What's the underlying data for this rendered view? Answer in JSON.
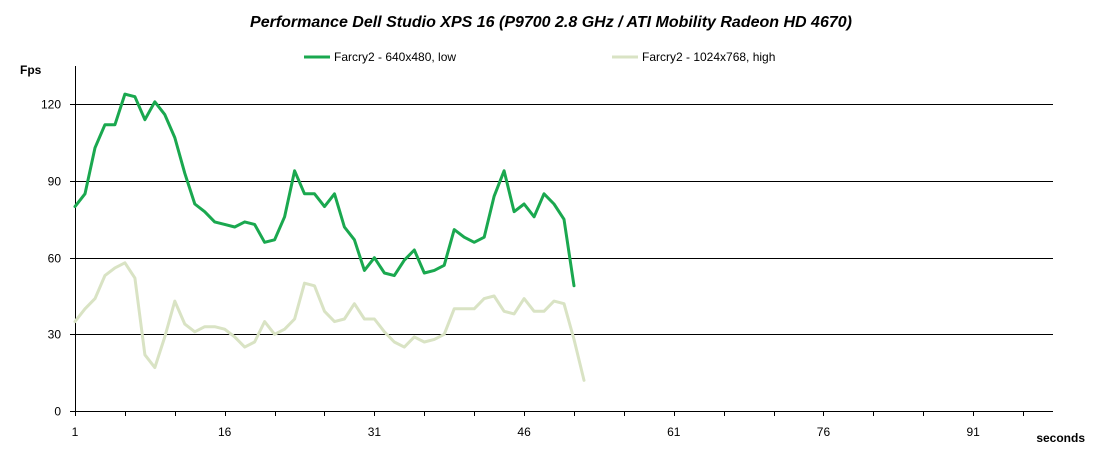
{
  "chart_data": {
    "type": "line",
    "title": "Performance Dell Studio XPS 16 (P9700 2.8 GHz / ATI Mobility Radeon HD 4670)",
    "xlabel": "seconds",
    "ylabel": "Fps",
    "xlim": [
      1,
      99
    ],
    "ylim": [
      0,
      135
    ],
    "x_ticks": [
      1,
      16,
      31,
      46,
      61,
      76,
      91
    ],
    "y_ticks": [
      0,
      30,
      60,
      90,
      120
    ],
    "grid": true,
    "legend_position": "top",
    "x": [
      1,
      2,
      3,
      4,
      5,
      6,
      7,
      8,
      9,
      10,
      11,
      12,
      13,
      14,
      15,
      16,
      17,
      18,
      19,
      20,
      21,
      22,
      23,
      24,
      25,
      26,
      27,
      28,
      29,
      30,
      31,
      32,
      33,
      34,
      35,
      36,
      37,
      38,
      39,
      40,
      41,
      42,
      43,
      44,
      45,
      46,
      47,
      48,
      49,
      50,
      51,
      52
    ],
    "series": [
      {
        "name": "Farcry2 - 640x480, low",
        "color": "#1aa84f",
        "values": [
          80,
          85,
          103,
          112,
          112,
          124,
          123,
          114,
          121,
          116,
          107,
          93,
          81,
          78,
          74,
          73,
          72,
          74,
          73,
          66,
          67,
          76,
          94,
          85,
          85,
          80,
          85,
          72,
          67,
          55,
          60,
          54,
          53,
          59,
          63,
          54,
          55,
          57,
          71,
          68,
          66,
          68,
          84,
          94,
          78,
          81,
          76,
          85,
          81,
          75,
          49,
          null
        ]
      },
      {
        "name": "Farcry2 - 1024x768, high",
        "color": "#d9e3c4",
        "values": [
          35,
          40,
          44,
          53,
          56,
          58,
          52,
          22,
          17,
          29,
          43,
          34,
          31,
          33,
          33,
          32,
          29,
          25,
          27,
          35,
          30,
          32,
          36,
          50,
          49,
          39,
          35,
          36,
          42,
          36,
          36,
          31,
          27,
          25,
          29,
          27,
          28,
          30,
          40,
          40,
          40,
          44,
          45,
          39,
          38,
          44,
          39,
          39,
          43,
          42,
          28,
          12
        ]
      }
    ]
  }
}
